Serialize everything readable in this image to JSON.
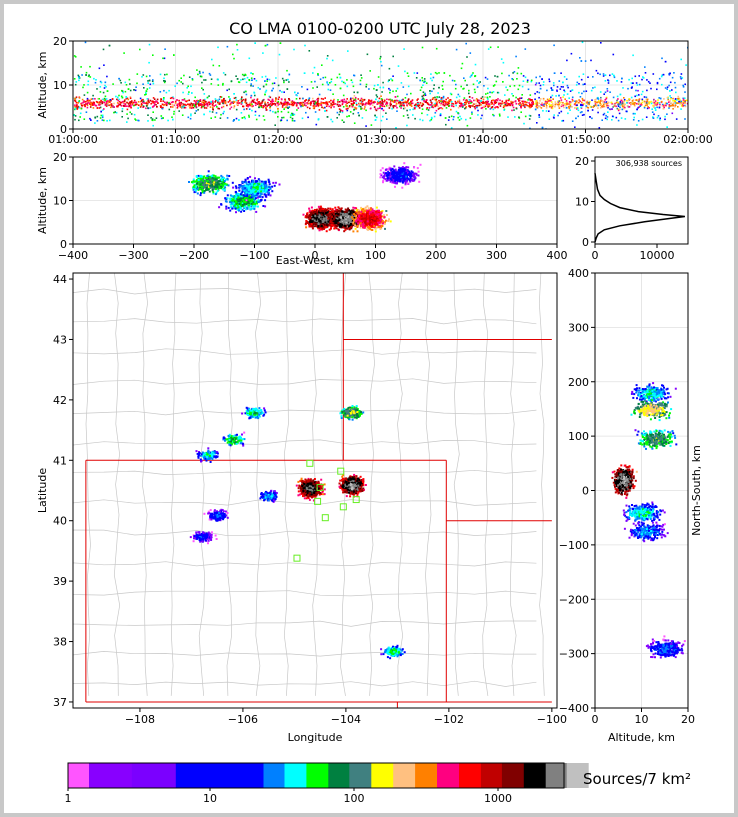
{
  "chart_data": [
    {
      "type": "scatter",
      "panel": "altitude vs time",
      "title": "CO LMA 0100-0200 UTC July 28, 2023",
      "xlabel": "",
      "ylabel": "Altitude, km",
      "xlim": [
        "01:00:00",
        "02:00:00"
      ],
      "ylim": [
        0,
        20
      ],
      "x_ticks": [
        "01:00:00",
        "01:10:00",
        "01:20:00",
        "01:30:00",
        "01:40:00",
        "01:50:00",
        "02:00:00"
      ],
      "y_ticks": [
        "0",
        "10",
        "20"
      ],
      "grid": true,
      "description_values": {
        "typical_altitude_band_km": [
          2,
          13
        ],
        "peak_density_altitude_km": 6
      }
    },
    {
      "type": "heatmap",
      "panel": "altitude vs east-west",
      "xlabel": "East-West, km",
      "ylabel": "Altitude, km",
      "xlim": [
        -400,
        400
      ],
      "ylim": [
        0,
        20
      ],
      "x_ticks": [
        "−400",
        "−300",
        "−200",
        "−100",
        "0",
        "100",
        "200",
        "300",
        "400"
      ],
      "y_ticks": [
        "0",
        "10",
        "20"
      ],
      "grid": true,
      "cells": [
        {
          "x": -175,
          "z": 14,
          "density": 40
        },
        {
          "x": -120,
          "z": 10,
          "density": 25
        },
        {
          "x": -100,
          "z": 13,
          "density": 15
        },
        {
          "x": 10,
          "z": 6,
          "density": 1200
        },
        {
          "x": 50,
          "z": 6,
          "density": 1500
        },
        {
          "x": 90,
          "z": 6,
          "density": 400
        },
        {
          "x": 140,
          "z": 16,
          "density": 6
        }
      ]
    },
    {
      "type": "line",
      "panel": "altitude histogram",
      "annotation": "306,938 sources",
      "xlim": [
        0,
        15000
      ],
      "ylim": [
        0,
        20
      ],
      "x_ticks": [
        "0",
        "10000"
      ],
      "y_ticks": [
        "0",
        "10",
        "20"
      ],
      "x": [
        0,
        200,
        500,
        1500,
        4000,
        8000,
        12000,
        14500,
        11000,
        7000,
        4000,
        2500,
        1500,
        800,
        400,
        200,
        0
      ],
      "y": [
        0,
        1,
        2,
        3,
        4,
        5,
        5.8,
        6.3,
        6.8,
        7.5,
        8.5,
        9.5,
        10.5,
        11.5,
        13,
        15,
        17
      ]
    },
    {
      "type": "heatmap",
      "panel": "plan view",
      "xlabel": "Longitude",
      "ylabel": "Latitude",
      "xlim": [
        -109.3,
        -99.9
      ],
      "ylim": [
        36.9,
        44.1
      ],
      "x_ticks": [
        "−108",
        "−106",
        "−104",
        "−102",
        "−100"
      ],
      "y_ticks": [
        "37",
        "38",
        "39",
        "40",
        "41",
        "42",
        "43",
        "44"
      ],
      "grid": true,
      "cells": [
        {
          "lon": -105.8,
          "lat": 41.8,
          "density": 20
        },
        {
          "lon": -106.2,
          "lat": 41.35,
          "density": 25
        },
        {
          "lon": -106.7,
          "lat": 41.1,
          "density": 15
        },
        {
          "lon": -103.9,
          "lat": 41.8,
          "density": 60
        },
        {
          "lon": -104.7,
          "lat": 40.55,
          "density": 1200
        },
        {
          "lon": -103.9,
          "lat": 40.6,
          "density": 1500
        },
        {
          "lon": -106.5,
          "lat": 40.1,
          "density": 8
        },
        {
          "lon": -106.8,
          "lat": 39.75,
          "density": 6
        },
        {
          "lon": -105.5,
          "lat": 40.42,
          "density": 10
        },
        {
          "lon": -103.1,
          "lat": 37.85,
          "density": 20
        }
      ],
      "stations": [
        {
          "lon": -104.7,
          "lat": 40.95
        },
        {
          "lon": -104.5,
          "lat": 40.55
        },
        {
          "lon": -104.1,
          "lat": 40.82
        },
        {
          "lon": -103.8,
          "lat": 40.35
        },
        {
          "lon": -104.05,
          "lat": 40.23
        },
        {
          "lon": -104.4,
          "lat": 40.05
        },
        {
          "lon": -104.95,
          "lat": 39.38
        },
        {
          "lon": -104.55,
          "lat": 40.32
        }
      ]
    },
    {
      "type": "heatmap",
      "panel": "north-south vs altitude",
      "xlabel": "Altitude, km",
      "ylabel": "North-South, km",
      "xlim": [
        0,
        20
      ],
      "ylim": [
        -400,
        400
      ],
      "x_ticks": [
        "0",
        "10",
        "20"
      ],
      "y_ticks": [
        "−400",
        "−300",
        "−200",
        "−100",
        "0",
        "100",
        "200",
        "300",
        "400"
      ],
      "grid": true,
      "cells": [
        {
          "alt": 12,
          "ns": 180,
          "density": 15
        },
        {
          "alt": 12,
          "ns": 150,
          "density": 80
        },
        {
          "alt": 13,
          "ns": 95,
          "density": 40
        },
        {
          "alt": 6,
          "ns": 20,
          "density": 1500
        },
        {
          "alt": 10,
          "ns": -40,
          "density": 15
        },
        {
          "alt": 11,
          "ns": -75,
          "density": 10
        },
        {
          "alt": 15,
          "ns": -290,
          "density": 8
        }
      ]
    }
  ],
  "colorbar": {
    "label": "Sources/7 km²",
    "tick_labels": [
      "1",
      "10",
      "100",
      "1000"
    ],
    "colors": [
      "#ff55ff",
      "#8800ff",
      "#7b00ff",
      "#0000ff",
      "#0000ff",
      "#0080ff",
      "#00ffff",
      "#00ff00",
      "#008040",
      "#408080",
      "#ffff00",
      "#ffc080",
      "#ff8000",
      "#ff0080",
      "#ff0000",
      "#c00000",
      "#800000",
      "#000000",
      "#808080",
      "#c0c0c0",
      "#ffffff"
    ]
  }
}
